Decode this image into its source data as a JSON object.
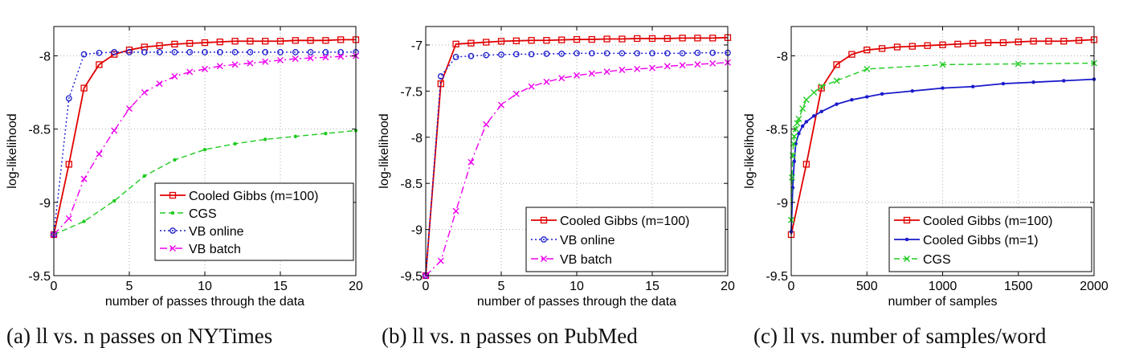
{
  "captions": [
    "(a) ll vs. n passes on NYTimes",
    "(b) ll vs. n passes on PubMed",
    "(c) ll vs. number of samples/word"
  ],
  "chart_data": [
    {
      "type": "line",
      "xlabel": "number of passes through the data",
      "ylabel": "log-likelihood",
      "xlim": [
        0,
        20
      ],
      "ylim": [
        -9.5,
        -7.8
      ],
      "xticks": [
        0,
        5,
        10,
        15,
        20
      ],
      "yticks": [
        -9.5,
        -9,
        -8.5,
        -8
      ],
      "ytick_labels": [
        "-9.5",
        "-9",
        "-8.5",
        "-8"
      ],
      "grid": true,
      "legend_position": "bottom-right",
      "series": [
        {
          "name": "Cooled Gibbs (m=100)",
          "color": "#e00000",
          "marker": "square",
          "style": "solid",
          "x": [
            0,
            1,
            2,
            3,
            4,
            5,
            6,
            7,
            8,
            9,
            10,
            11,
            12,
            13,
            14,
            15,
            16,
            17,
            18,
            19,
            20
          ],
          "y": [
            -9.22,
            -8.74,
            -8.22,
            -8.06,
            -7.99,
            -7.96,
            -7.94,
            -7.93,
            -7.92,
            -7.915,
            -7.91,
            -7.905,
            -7.9,
            -7.9,
            -7.9,
            -7.9,
            -7.895,
            -7.895,
            -7.895,
            -7.89,
            -7.89
          ]
        },
        {
          "name": "CGS",
          "color": "#22cc22",
          "marker": "dot",
          "style": "dashed",
          "x": [
            0,
            2,
            4,
            6,
            8,
            10,
            12,
            14,
            16,
            18,
            20
          ],
          "y": [
            -9.22,
            -9.13,
            -8.99,
            -8.82,
            -8.71,
            -8.64,
            -8.6,
            -8.57,
            -8.55,
            -8.53,
            -8.51
          ]
        },
        {
          "name": "VB online",
          "color": "#1a1acc",
          "marker": "circle",
          "style": "dotted",
          "x": [
            0,
            1,
            2,
            3,
            4,
            5,
            6,
            7,
            8,
            9,
            10,
            11,
            12,
            13,
            14,
            15,
            16,
            17,
            18,
            19,
            20
          ],
          "y": [
            -9.22,
            -8.29,
            -7.99,
            -7.98,
            -7.975,
            -7.975,
            -7.975,
            -7.975,
            -7.975,
            -7.975,
            -7.975,
            -7.975,
            -7.975,
            -7.975,
            -7.975,
            -7.975,
            -7.975,
            -7.975,
            -7.975,
            -7.975,
            -7.975
          ]
        },
        {
          "name": "VB batch",
          "color": "#ee00ee",
          "marker": "x",
          "style": "dashdot",
          "x": [
            0,
            1,
            2,
            3,
            4,
            5,
            6,
            7,
            8,
            9,
            10,
            11,
            12,
            13,
            14,
            15,
            16,
            17,
            18,
            19,
            20
          ],
          "y": [
            -9.22,
            -9.11,
            -8.84,
            -8.67,
            -8.51,
            -8.36,
            -8.25,
            -8.19,
            -8.14,
            -8.11,
            -8.09,
            -8.07,
            -8.06,
            -8.05,
            -8.04,
            -8.03,
            -8.02,
            -8.015,
            -8.01,
            -8.005,
            -8.0
          ]
        }
      ]
    },
    {
      "type": "line",
      "xlabel": "number of passes through the data",
      "ylabel": "log-likelihood",
      "xlim": [
        0,
        20
      ],
      "ylim": [
        -9.5,
        -6.8
      ],
      "xticks": [
        0,
        5,
        10,
        15,
        20
      ],
      "yticks": [
        -9.5,
        -9,
        -8.5,
        -8,
        -7.5,
        -7
      ],
      "ytick_labels": [
        "-9.5",
        "-9",
        "-8.5",
        "-8",
        "-7.5",
        "-7"
      ],
      "grid": true,
      "legend_position": "bottom-right",
      "series": [
        {
          "name": "Cooled Gibbs (m=100)",
          "color": "#e00000",
          "marker": "square",
          "style": "solid",
          "x": [
            0,
            1,
            2,
            3,
            4,
            5,
            6,
            7,
            8,
            9,
            10,
            11,
            12,
            13,
            14,
            15,
            16,
            17,
            18,
            19,
            20
          ],
          "y": [
            -9.5,
            -7.42,
            -6.99,
            -6.98,
            -6.97,
            -6.96,
            -6.955,
            -6.95,
            -6.95,
            -6.945,
            -6.94,
            -6.94,
            -6.935,
            -6.935,
            -6.93,
            -6.93,
            -6.93,
            -6.925,
            -6.925,
            -6.925,
            -6.92
          ]
        },
        {
          "name": "VB online",
          "color": "#1a1acc",
          "marker": "circle",
          "style": "dotted",
          "x": [
            0,
            1,
            2,
            3,
            4,
            5,
            6,
            7,
            8,
            9,
            10,
            11,
            12,
            13,
            14,
            15,
            16,
            17,
            18,
            19,
            20
          ],
          "y": [
            -9.5,
            -7.34,
            -7.13,
            -7.12,
            -7.11,
            -7.105,
            -7.1,
            -7.1,
            -7.095,
            -7.095,
            -7.09,
            -7.09,
            -7.09,
            -7.09,
            -7.09,
            -7.09,
            -7.09,
            -7.09,
            -7.085,
            -7.085,
            -7.085
          ]
        },
        {
          "name": "VB batch",
          "color": "#ee00ee",
          "marker": "x",
          "style": "dashdot",
          "x": [
            0,
            1,
            2,
            3,
            4,
            5,
            6,
            7,
            8,
            9,
            10,
            11,
            12,
            13,
            14,
            15,
            16,
            17,
            18,
            19,
            20
          ],
          "y": [
            -9.5,
            -9.34,
            -8.8,
            -8.27,
            -7.86,
            -7.65,
            -7.53,
            -7.45,
            -7.4,
            -7.36,
            -7.33,
            -7.31,
            -7.29,
            -7.27,
            -7.26,
            -7.25,
            -7.23,
            -7.22,
            -7.21,
            -7.2,
            -7.19
          ]
        }
      ]
    },
    {
      "type": "line",
      "xlabel": "number of samples",
      "ylabel": "log-likelihood",
      "xlim": [
        0,
        2000
      ],
      "ylim": [
        -9.5,
        -7.8
      ],
      "xticks": [
        0,
        500,
        1000,
        1500,
        2000
      ],
      "yticks": [
        -9.5,
        -9,
        -8.5,
        -8
      ],
      "ytick_labels": [
        "-9.5",
        "-9",
        "-8.5",
        "-8"
      ],
      "grid": true,
      "legend_position": "bottom-right",
      "series": [
        {
          "name": "Cooled Gibbs (m=100)",
          "color": "#e00000",
          "marker": "square",
          "style": "solid",
          "x": [
            0,
            100,
            200,
            300,
            400,
            500,
            600,
            700,
            800,
            900,
            1000,
            1100,
            1200,
            1300,
            1400,
            1500,
            1600,
            1700,
            1800,
            1900,
            2000
          ],
          "y": [
            -9.22,
            -8.74,
            -8.22,
            -8.06,
            -7.99,
            -7.96,
            -7.95,
            -7.94,
            -7.935,
            -7.93,
            -7.925,
            -7.92,
            -7.915,
            -7.91,
            -7.91,
            -7.905,
            -7.9,
            -7.9,
            -7.9,
            -7.895,
            -7.89
          ]
        },
        {
          "name": "Cooled Gibbs (m=1)",
          "color": "#1a1acc",
          "marker": "dot",
          "style": "solid",
          "x": [
            0,
            10,
            20,
            30,
            50,
            75,
            100,
            150,
            200,
            300,
            400,
            500,
            600,
            800,
            1000,
            1200,
            1400,
            1600,
            1800,
            2000
          ],
          "y": [
            -9.2,
            -8.9,
            -8.72,
            -8.6,
            -8.53,
            -8.48,
            -8.45,
            -8.41,
            -8.38,
            -8.33,
            -8.3,
            -8.28,
            -8.26,
            -8.24,
            -8.22,
            -8.21,
            -8.19,
            -8.18,
            -8.17,
            -8.16
          ]
        },
        {
          "name": "CGS",
          "color": "#22cc22",
          "marker": "x",
          "style": "dashed",
          "x": [
            0,
            5,
            10,
            15,
            20,
            30,
            40,
            50,
            75,
            100,
            150,
            200,
            300,
            500,
            1000,
            1500,
            2000
          ],
          "y": [
            -9.12,
            -8.83,
            -8.68,
            -8.6,
            -8.55,
            -8.5,
            -8.46,
            -8.43,
            -8.36,
            -8.3,
            -8.25,
            -8.21,
            -8.17,
            -8.09,
            -8.06,
            -8.055,
            -8.05
          ]
        }
      ]
    }
  ]
}
